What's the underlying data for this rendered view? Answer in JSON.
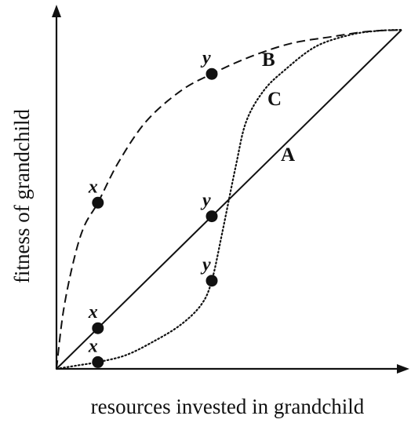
{
  "chart_data": {
    "type": "line",
    "title": "",
    "xlabel": "resources invested in grandchild",
    "ylabel": "fitness of grandchild",
    "xlim": [
      0,
      1
    ],
    "ylim": [
      0,
      1
    ],
    "ticks": "none",
    "grid": false,
    "axis_arrows": true,
    "series": [
      {
        "name": "A",
        "style": "solid",
        "color": "#111111",
        "x": [
          0,
          1
        ],
        "y": [
          0,
          1
        ],
        "points": [
          {
            "label": "x",
            "x": 0.12,
            "y": 0.12
          },
          {
            "label": "y",
            "x": 0.45,
            "y": 0.45
          }
        ]
      },
      {
        "name": "B",
        "style": "dashed",
        "color": "#111111",
        "x": [
          0,
          0.02,
          0.05,
          0.08,
          0.12,
          0.18,
          0.26,
          0.36,
          0.45,
          0.56,
          0.68,
          0.8,
          0.9,
          1
        ],
        "y": [
          0,
          0.17,
          0.32,
          0.42,
          0.49,
          0.61,
          0.73,
          0.82,
          0.87,
          0.92,
          0.96,
          0.98,
          0.995,
          1
        ],
        "points": [
          {
            "label": "x",
            "x": 0.12,
            "y": 0.49
          },
          {
            "label": "y",
            "x": 0.45,
            "y": 0.87
          }
        ]
      },
      {
        "name": "C",
        "style": "dotted",
        "color": "#111111",
        "x": [
          0,
          0.06,
          0.12,
          0.2,
          0.28,
          0.36,
          0.42,
          0.45,
          0.48,
          0.52,
          0.55,
          0.6,
          0.66,
          0.75,
          0.85,
          0.93,
          1
        ],
        "y": [
          0,
          0.01,
          0.02,
          0.04,
          0.08,
          0.13,
          0.19,
          0.26,
          0.4,
          0.6,
          0.73,
          0.82,
          0.88,
          0.95,
          0.985,
          0.997,
          1
        ],
        "points": [
          {
            "label": "x",
            "x": 0.12,
            "y": 0.02
          },
          {
            "label": "y",
            "x": 0.45,
            "y": 0.26
          }
        ]
      }
    ]
  }
}
